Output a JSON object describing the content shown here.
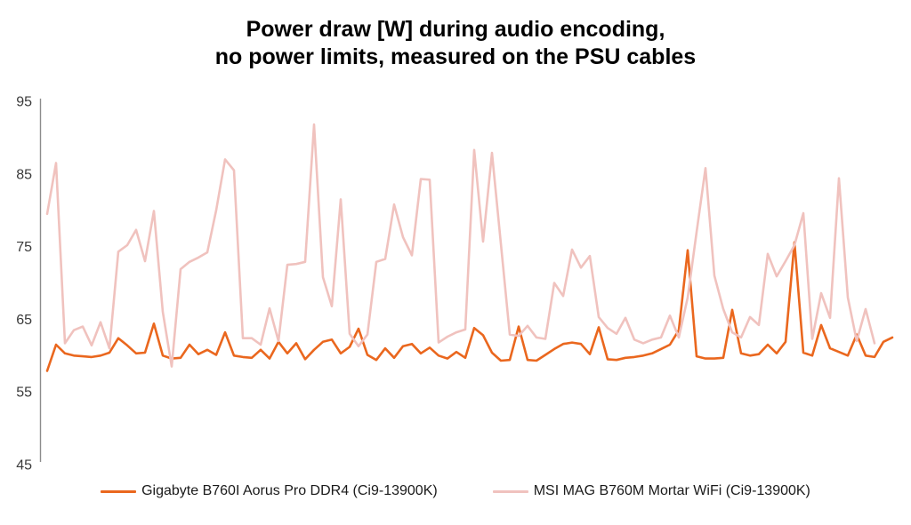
{
  "title": {
    "line1": "Power draw [W] during audio encoding,",
    "line2": "no power limits, measured on the PSU cables"
  },
  "colors": {
    "gigabyte_series": "#EA671E",
    "msi_series": "#F0C2BE",
    "axis_line": "#8C8C8C",
    "tick_text": "#3A3A3A",
    "legend_text": "#1A1A1A",
    "background": "#FFFFFF"
  },
  "y_axis": {
    "ticks": [
      95,
      85,
      75,
      65,
      55,
      45
    ],
    "min": 45,
    "max": 95
  },
  "legend": {
    "items": [
      {
        "key": "gigabyte",
        "label": "Gigabyte B760I Aorus Pro DDR4 (Ci9-13900K)"
      },
      {
        "key": "msi",
        "label": "MSI MAG B760M Mortar WiFi (Ci9-13900K)"
      }
    ]
  },
  "chart_data": {
    "type": "line",
    "title": "Power draw [W] during audio encoding, no power limits, measured on the PSU cables",
    "xlabel": "",
    "ylabel": "Power draw [W]",
    "ylim": [
      45,
      95
    ],
    "y_ticks": [
      45,
      55,
      65,
      75,
      85,
      95
    ],
    "grid": false,
    "legend_position": "bottom",
    "x_unit": "sample-index",
    "series": [
      {
        "key": "gigabyte",
        "name": "Gigabyte B760I Aorus Pro DDR4 (Ci9-13900K)",
        "color": "#EA671E",
        "values": [
          57.9,
          61.5,
          60.3,
          60.0,
          59.9,
          59.8,
          60.0,
          60.4,
          62.4,
          61.4,
          60.3,
          60.4,
          64.4,
          60.0,
          59.6,
          59.7,
          61.5,
          60.2,
          60.8,
          60.1,
          63.2,
          60.0,
          59.8,
          59.7,
          60.8,
          59.6,
          61.9,
          60.3,
          61.7,
          59.5,
          60.8,
          61.9,
          62.2,
          60.3,
          61.2,
          63.7,
          60.1,
          59.4,
          61.0,
          59.7,
          61.3,
          61.6,
          60.3,
          61.1,
          60.0,
          59.6,
          60.5,
          59.7,
          63.8,
          62.8,
          60.4,
          59.3,
          59.4,
          64.0,
          59.4,
          59.3,
          60.1,
          60.9,
          61.6,
          61.8,
          61.6,
          60.2,
          63.9,
          59.5,
          59.4,
          59.7,
          59.8,
          60.0,
          60.3,
          60.9,
          61.5,
          63.5,
          74.5,
          59.9,
          59.6,
          59.6,
          59.7,
          66.3,
          60.3,
          60.0,
          60.2,
          61.5,
          60.3,
          61.9,
          75.6,
          60.4,
          60.0,
          64.2,
          61.0,
          60.5,
          60.0,
          62.9,
          60.0,
          59.8,
          61.9,
          62.5
        ]
      },
      {
        "key": "msi",
        "name": "MSI MAG B760M Mortar WiFi (Ci9-13900K)",
        "color": "#F0C2BE",
        "values": [
          79.5,
          86.5,
          61.7,
          63.5,
          64.0,
          61.4,
          64.6,
          61.0,
          74.3,
          75.2,
          77.3,
          73.0,
          79.9,
          66.0,
          58.5,
          71.9,
          72.9,
          73.5,
          74.2,
          80.0,
          87.0,
          85.5,
          62.4,
          62.4,
          61.5,
          66.5,
          62.0,
          72.5,
          72.6,
          72.9,
          91.8,
          70.8,
          66.8,
          81.5,
          63.0,
          61.3,
          62.9,
          72.9,
          73.3,
          80.8,
          76.3,
          73.8,
          84.3,
          84.2,
          61.8,
          62.6,
          63.2,
          63.6,
          88.3,
          75.7,
          87.9,
          75.4,
          62.9,
          62.7,
          64.1,
          62.5,
          62.3,
          70.0,
          68.2,
          74.6,
          72.1,
          73.7,
          65.3,
          63.8,
          63.0,
          65.2,
          62.2,
          61.7,
          62.2,
          62.5,
          65.5,
          62.5,
          68.0,
          77.0,
          85.8,
          71.0,
          66.4,
          63.2,
          62.5,
          65.3,
          64.2,
          74.0,
          70.9,
          73.0,
          75.2,
          79.6,
          62.3,
          68.6,
          65.2,
          84.4,
          68.0,
          62.0,
          66.4,
          61.7
        ]
      }
    ]
  }
}
